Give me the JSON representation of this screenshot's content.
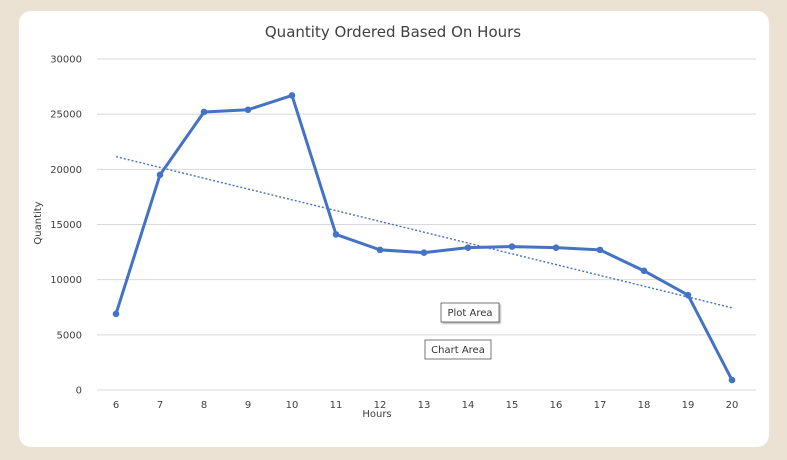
{
  "chart_data": {
    "type": "line",
    "title": "Quantity Ordered Based On Hours",
    "xlabel": "Hours",
    "ylabel": "Quantity",
    "x": [
      "6",
      "7",
      "8",
      "9",
      "10",
      "11",
      "12",
      "13",
      "14",
      "15",
      "16",
      "17",
      "18",
      "19",
      "20"
    ],
    "series": [
      {
        "values": [
          6900,
          19500,
          25200,
          25400,
          26700,
          14100,
          12700,
          12450,
          12900,
          13000,
          12900,
          12700,
          10800,
          8600,
          900
        ],
        "color": "#4472c4"
      }
    ],
    "trendline": {
      "type": "linear",
      "start": 21150,
      "end": 7450,
      "color": "#4472c4"
    },
    "ylim": [
      0,
      30000
    ],
    "yticks": [
      0,
      5000,
      10000,
      15000,
      20000,
      25000,
      30000
    ],
    "grid": true,
    "legend": "none",
    "annotations": [
      "Plot Area",
      "Chart Area"
    ]
  }
}
